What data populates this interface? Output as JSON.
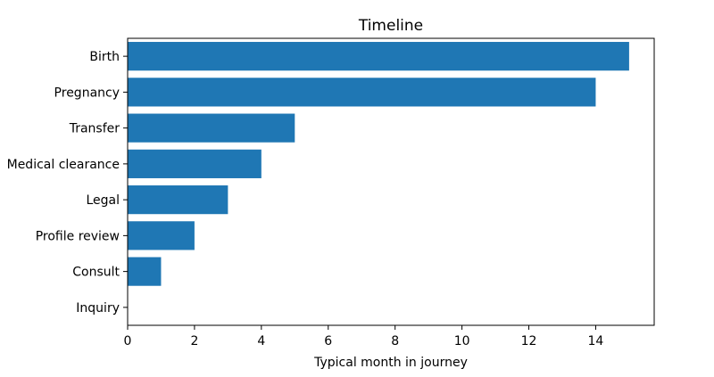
{
  "chart_data": {
    "type": "bar",
    "orientation": "horizontal",
    "title": "Timeline",
    "xlabel": "Typical month in journey",
    "ylabel": "",
    "categories": [
      "Inquiry",
      "Consult",
      "Profile review",
      "Legal",
      "Medical clearance",
      "Transfer",
      "Pregnancy",
      "Birth"
    ],
    "values": [
      0,
      1,
      2,
      3,
      4,
      5,
      14,
      15
    ],
    "xlim": [
      0,
      15.75
    ],
    "xticks": [
      0,
      2,
      4,
      6,
      8,
      10,
      12,
      14
    ],
    "grid": false,
    "bar_color": "#1f77b4"
  }
}
